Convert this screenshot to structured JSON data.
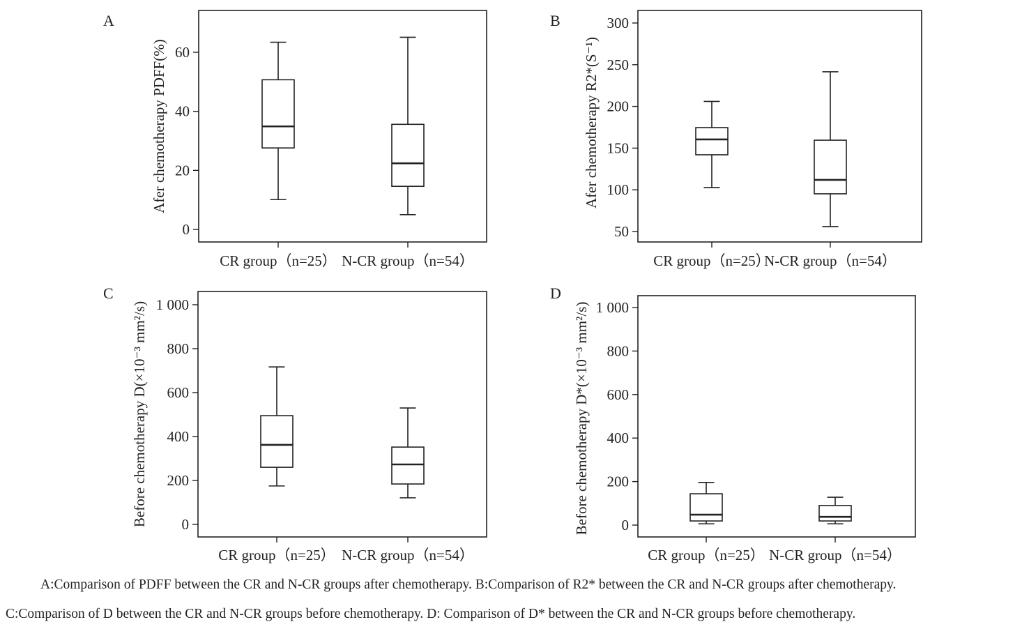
{
  "chart_data": [
    {
      "type": "box",
      "panel": "A",
      "ylabel": "Afer chemotherapy PDFF(%)",
      "categories": [
        "CR group（n=25）",
        "N-CR group（n=54）"
      ],
      "yticks": [
        0,
        20,
        40,
        60
      ],
      "ytick_labels": [
        "0",
        "20",
        "40",
        "60"
      ],
      "ylim": [
        -4,
        74
      ],
      "boxes": [
        {
          "min": 10.1,
          "q1": 27.6,
          "median": 34.9,
          "q3": 50.7,
          "max": 63.4
        },
        {
          "min": 5.0,
          "q1": 14.6,
          "median": 22.4,
          "q3": 35.6,
          "max": 65.1
        }
      ]
    },
    {
      "type": "box",
      "panel": "B",
      "ylabel": "Afer chemotherapy R2*(S⁻¹)",
      "categories": [
        "CR group（n=25）",
        "N-CR group（n=54）"
      ],
      "yticks": [
        50,
        100,
        150,
        200,
        250,
        300
      ],
      "ytick_labels": [
        "50",
        "100",
        "150",
        "200",
        "250",
        "300"
      ],
      "ylim": [
        38,
        315
      ],
      "boxes": [
        {
          "min": 102.7,
          "q1": 142,
          "median": 160.4,
          "q3": 174.6,
          "max": 206
        },
        {
          "min": 55.9,
          "q1": 95.2,
          "median": 111.9,
          "q3": 159.5,
          "max": 241.5
        }
      ]
    },
    {
      "type": "box",
      "panel": "C",
      "ylabel": "Before chemotherapy D(×10⁻³ mm²/s)",
      "categories": [
        "CR group（n=25）",
        "N-CR group（n=54）"
      ],
      "yticks": [
        0,
        200,
        400,
        600,
        800,
        1000
      ],
      "ytick_labels": [
        "0",
        "200",
        "400",
        "600",
        "800",
        "1 000"
      ],
      "ylim": [
        -57,
        1060
      ],
      "boxes": [
        {
          "min": 175,
          "q1": 260,
          "median": 362,
          "q3": 495,
          "max": 717
        },
        {
          "min": 121,
          "q1": 184,
          "median": 273,
          "q3": 352,
          "max": 530
        }
      ]
    },
    {
      "type": "box",
      "panel": "D",
      "ylabel": "Before chemotherapy D*(×10⁻³ mm²/s)",
      "categories": [
        "CR group（n=25）",
        "N-CR group（n=54）"
      ],
      "yticks": [
        0,
        200,
        400,
        600,
        800,
        1000
      ],
      "ytick_labels": [
        "0",
        "200",
        "400",
        "600",
        "800",
        "1 000"
      ],
      "ylim": [
        -54,
        1055
      ],
      "boxes": [
        {
          "min": 6,
          "q1": 19,
          "median": 48,
          "q3": 144,
          "max": 196
        },
        {
          "min": 6,
          "q1": 19,
          "median": 38,
          "q3": 90,
          "max": 128
        }
      ]
    }
  ],
  "caption": {
    "line1": "A:Comparison of PDFF between the CR and N-CR groups after chemotherapy. B:Comparison of R2* between the CR and N-CR groups after chemotherapy.",
    "line2": "C:Comparison of D between the CR and N-CR groups before chemotherapy. D:  Comparison of D* between the CR and N-CR groups before chemotherapy."
  }
}
